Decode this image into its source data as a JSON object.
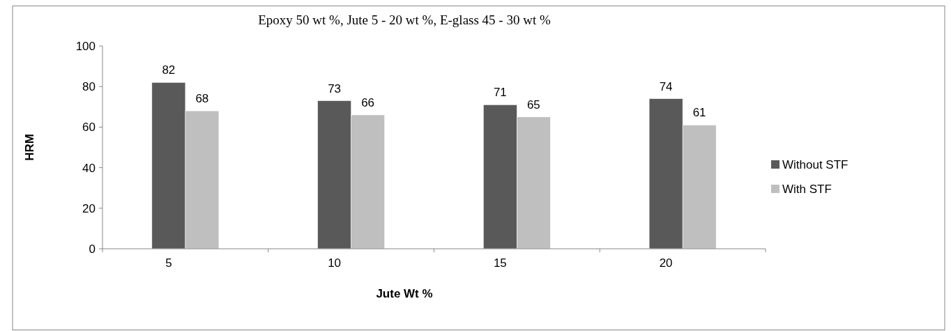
{
  "chart_data": {
    "type": "bar",
    "title": "Epoxy 50 wt %, Jute 5 - 20 wt %, E-glass 45 - 30 wt %",
    "xlabel": "Jute Wt %",
    "ylabel": "HRM",
    "categories": [
      "5",
      "10",
      "15",
      "20"
    ],
    "series": [
      {
        "name": "Without STF",
        "color": "#595959",
        "values": [
          82,
          73,
          71,
          74
        ]
      },
      {
        "name": "With STF",
        "color": "#bfbfbf",
        "values": [
          68,
          66,
          65,
          61
        ]
      }
    ],
    "ylim": [
      0,
      100
    ],
    "yticks": [
      0,
      20,
      40,
      60,
      80,
      100
    ],
    "data_labels": true,
    "legend": "right"
  }
}
